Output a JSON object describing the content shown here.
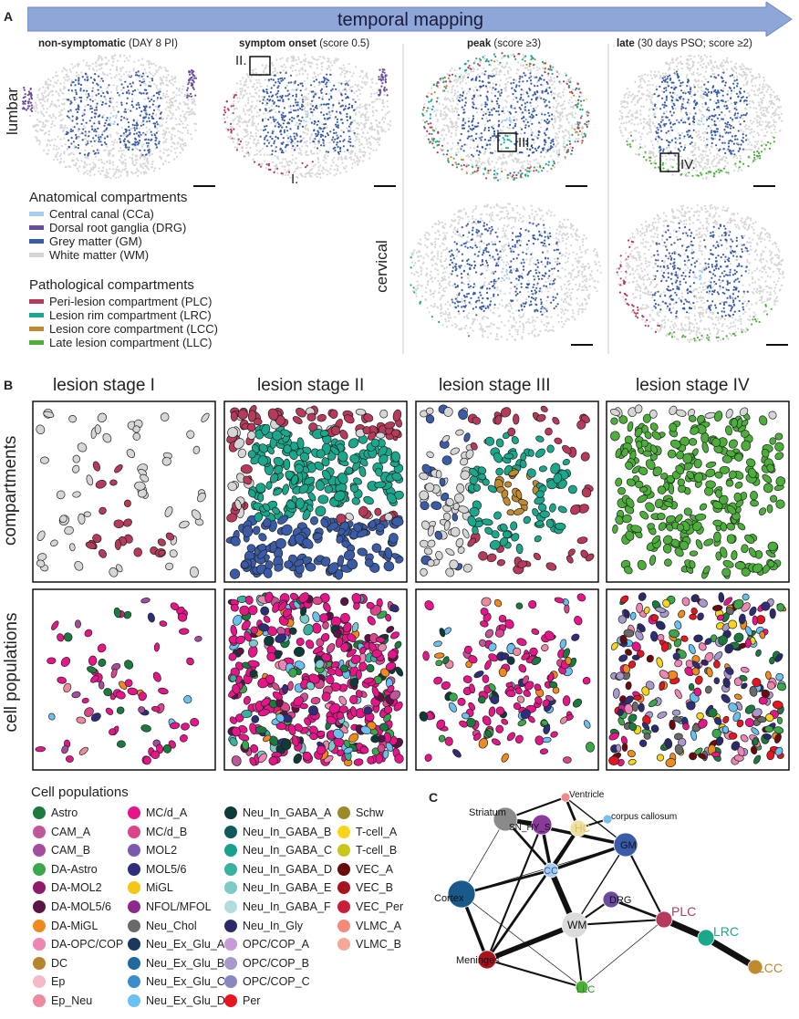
{
  "panels": {
    "A": "A",
    "B": "B",
    "C": "C"
  },
  "banner": "temporal mapping",
  "timepoints": [
    {
      "bold": "non-symptomatic",
      "rest": " (DAY 8 PI)"
    },
    {
      "bold": "symptom onset",
      "rest": " (score 0.5)"
    },
    {
      "bold": "peak",
      "rest": " (score ≥3)"
    },
    {
      "bold": "late",
      "rest": " (30 days PSO; score ≥2)"
    }
  ],
  "regions": {
    "lumbar": "lumbar",
    "cervical": "cervical"
  },
  "boxes": [
    "I.",
    "II.",
    "III.",
    "IV."
  ],
  "anatomical": {
    "title": "Anatomical compartments",
    "items": [
      {
        "label": "Central canal (CCa)",
        "color": "#a9cdf0"
      },
      {
        "label": "Dorsal root ganglia (DRG)",
        "color": "#6a4c9c"
      },
      {
        "label": "Grey matter (GM)",
        "color": "#3a5ca8"
      },
      {
        "label": "White matter (WM)",
        "color": "#d6d6d6"
      }
    ]
  },
  "pathological": {
    "title": "Pathological compartments",
    "items": [
      {
        "label": "Peri-lesion compartment (PLC)",
        "color": "#b73a5a"
      },
      {
        "label": "Lesion rim compartment (LRC)",
        "color": "#1aa88c"
      },
      {
        "label": "Lesion core compartment (LCC)",
        "color": "#c08a30"
      },
      {
        "label": "Late lesion compartment (LLC)",
        "color": "#4caf3a"
      }
    ]
  },
  "stages": [
    "lesion stage I",
    "lesion stage II",
    "lesion stage III",
    "lesion stage IV"
  ],
  "row_labels": {
    "compartments": "compartments",
    "cells": "cell populations"
  },
  "cell_populations": {
    "title": "Cell populations",
    "columns": [
      [
        {
          "label": "Astro",
          "color": "#1b7a3e"
        },
        {
          "label": "CAM_A",
          "color": "#c0559a"
        },
        {
          "label": "CAM_B",
          "color": "#a44d9e"
        },
        {
          "label": "DA-Astro",
          "color": "#3aa84a"
        },
        {
          "label": "DA-MOL2",
          "color": "#8e1b6e"
        },
        {
          "label": "DA-MOL5/6",
          "color": "#5a1446"
        },
        {
          "label": "DA-MiGL",
          "color": "#f08a1c"
        },
        {
          "label": "DA-OPC/COP",
          "color": "#ee86b4"
        },
        {
          "label": "DC",
          "color": "#b8862a"
        },
        {
          "label": "Ep",
          "color": "#f5b8c6"
        },
        {
          "label": "Ep_Neu",
          "color": "#ee8aa0"
        }
      ],
      [
        {
          "label": "MC/d_A",
          "color": "#e8148a"
        },
        {
          "label": "MC/d_B",
          "color": "#d9468e"
        },
        {
          "label": "MOL2",
          "color": "#7a5ab0"
        },
        {
          "label": "MOL5/6",
          "color": "#2e2e7a"
        },
        {
          "label": "MiGL",
          "color": "#f5c518"
        },
        {
          "label": "NFOL/MFOL",
          "color": "#8a2a8a"
        },
        {
          "label": "Neu_Chol",
          "color": "#6a6a6a"
        },
        {
          "label": "Neu_Ex_Glu_A",
          "color": "#1a3a5c"
        },
        {
          "label": "Neu_Ex_Glu_B",
          "color": "#1f6a9e"
        },
        {
          "label": "Neu_Ex_Glu_C",
          "color": "#3a8ed0"
        },
        {
          "label": "Neu_Ex_Glu_D",
          "color": "#6ac0ee"
        }
      ],
      [
        {
          "label": "Neu_In_GABA_A",
          "color": "#0f3a3a"
        },
        {
          "label": "Neu_In_GABA_B",
          "color": "#0f5a5a"
        },
        {
          "label": "Neu_In_GABA_C",
          "color": "#1aa08e"
        },
        {
          "label": "Neu_In_GABA_D",
          "color": "#3ab0a0"
        },
        {
          "label": "Neu_In_GABA_E",
          "color": "#7ccaca"
        },
        {
          "label": "Neu_In_GABA_F",
          "color": "#b4dcdc"
        },
        {
          "label": "Neu_In_Gly",
          "color": "#2a2a6a"
        },
        {
          "label": "OPC/COP_A",
          "color": "#c89ad8"
        },
        {
          "label": "OPC/COP_B",
          "color": "#a898cc"
        },
        {
          "label": "OPC/COP_C",
          "color": "#8888c0"
        },
        {
          "label": "Per",
          "color": "#e8141e"
        }
      ],
      [
        {
          "label": "Schw",
          "color": "#9a8a2a"
        },
        {
          "label": "T-cell_A",
          "color": "#f8d41a"
        },
        {
          "label": "T-cell_B",
          "color": "#c8c81a"
        },
        {
          "label": "VEC_A",
          "color": "#6a0a0a"
        },
        {
          "label": "VEC_B",
          "color": "#a8141e"
        },
        {
          "label": "VEC_Per",
          "color": "#c81e3a"
        },
        {
          "label": "VLMC_A",
          "color": "#f58a7a"
        },
        {
          "label": "VLMC_B",
          "color": "#f5a898"
        }
      ]
    ]
  },
  "network": {
    "nodes": [
      {
        "label": "Ventricle",
        "color": "#f08a8a"
      },
      {
        "label": "Striatum",
        "color": "#8a8a8a"
      },
      {
        "label": "corpus callosum",
        "color": "#7ac0e8"
      },
      {
        "label": "SN_HY_S",
        "color": "#8a3a9a"
      },
      {
        "label": "HC",
        "color": "#f0e0a0"
      },
      {
        "label": "GM",
        "color": "#3a5ca8"
      },
      {
        "label": "CC",
        "color": "#a9cdf0"
      },
      {
        "label": "Cortex",
        "color": "#1a5a8a"
      },
      {
        "label": "DRG",
        "color": "#6a4c9c"
      },
      {
        "label": "PLC",
        "color": "#b73a5a"
      },
      {
        "label": "LRC",
        "color": "#1aa88c"
      },
      {
        "label": "WM",
        "color": "#dcdcdc"
      },
      {
        "label": "LCC",
        "color": "#c08a30"
      },
      {
        "label": "Meninges",
        "color": "#a8141e"
      },
      {
        "label": "LLC",
        "color": "#4caf3a"
      }
    ]
  }
}
